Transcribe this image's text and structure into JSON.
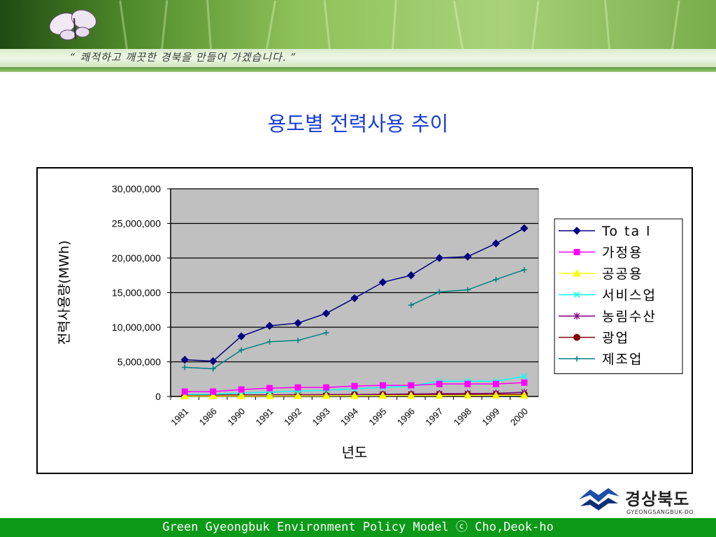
{
  "banner": {
    "quote": "“ 쾌적하고 깨끗한 경북을 만들어 가겠습니다. ”"
  },
  "slide": {
    "title": "용도별 전력사용 추이"
  },
  "logo": {
    "name": "경상북도",
    "sub": "GYEONGSANGBUK-DO"
  },
  "footer": {
    "text": "Green Gyeongbuk Environment Policy Model ⓒ Cho,Deok-ho"
  },
  "colors": {
    "title": "#1a3fd8",
    "footer_bg": "#0c9a18",
    "plot_bg": "#c0c0c0"
  },
  "chart_data": {
    "type": "line",
    "xlabel": "년도",
    "ylabel": "전력사용량(MWh)",
    "ylim": [
      0,
      30000000
    ],
    "yticks": [
      0,
      5000000,
      10000000,
      15000000,
      20000000,
      25000000,
      30000000
    ],
    "ytick_labels": [
      "0",
      "5,000,000",
      "10,000,000",
      "15,000,000",
      "20,000,000",
      "25,000,000",
      "30,000,000"
    ],
    "categories": [
      "1981",
      "1986",
      "1990",
      "1991",
      "1992",
      "1993",
      "1994",
      "1995",
      "1996",
      "1997",
      "1998",
      "1999",
      "2000"
    ],
    "grid": "horizontal",
    "legend_position": "right",
    "series": [
      {
        "name": "To ta l",
        "color": "#000080",
        "marker": "diamond",
        "values": [
          5300000,
          5100000,
          8700000,
          10200000,
          10600000,
          12000000,
          14200000,
          16500000,
          17500000,
          20000000,
          20200000,
          22100000,
          24300000
        ]
      },
      {
        "name": "가정용",
        "color": "#ff00ff",
        "marker": "square",
        "values": [
          700000,
          700000,
          1000000,
          1200000,
          1300000,
          1300000,
          1500000,
          1600000,
          1600000,
          1800000,
          1800000,
          1800000,
          2000000
        ]
      },
      {
        "name": "공공용",
        "color": "#ffff00",
        "marker": "triangle",
        "values": [
          50000,
          50000,
          60000,
          70000,
          80000,
          90000,
          100000,
          110000,
          120000,
          130000,
          140000,
          150000,
          160000
        ]
      },
      {
        "name": "서비스업",
        "color": "#00ffff",
        "marker": "x",
        "values": [
          300000,
          300000,
          500000,
          600000,
          800000,
          900000,
          1100000,
          1300000,
          1500000,
          2200000,
          2200000,
          2200000,
          2900000
        ]
      },
      {
        "name": "농림수산",
        "color": "#800080",
        "marker": "star",
        "values": [
          100000,
          100000,
          150000,
          200000,
          220000,
          250000,
          280000,
          320000,
          350000,
          400000,
          420000,
          450000,
          600000
        ]
      },
      {
        "name": "광업",
        "color": "#800000",
        "marker": "circle",
        "values": [
          200000,
          200000,
          220000,
          230000,
          240000,
          250000,
          260000,
          270000,
          280000,
          290000,
          300000,
          310000,
          320000
        ]
      },
      {
        "name": "제조업",
        "color": "#008080",
        "marker": "plus",
        "values": [
          4200000,
          4000000,
          6700000,
          7900000,
          8100000,
          9200000,
          null,
          null,
          13200000,
          15100000,
          15400000,
          16900000,
          18300000
        ]
      }
    ]
  }
}
